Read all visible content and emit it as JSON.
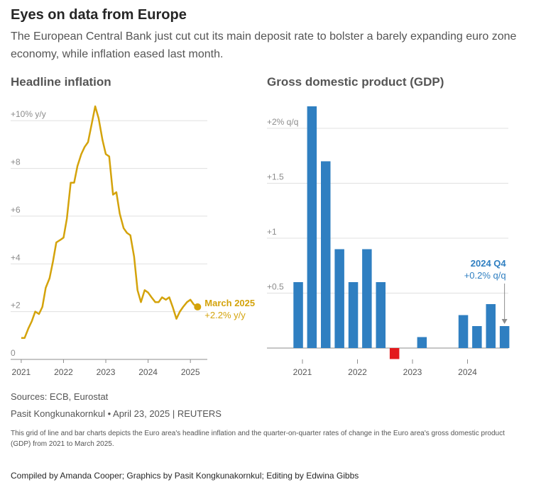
{
  "header": {
    "title": "Eyes on data from Europe",
    "subtitle": "The European Central Bank just cut cut its main deposit rate to bolster a barely expanding euro zone economy, while inflation eased last month."
  },
  "colors": {
    "inflation": "#d4a30b",
    "gdp_positive": "#2f7fc1",
    "gdp_negative": "#e31a1c",
    "grid": "#e0e0e0",
    "axis": "#8c8c8c"
  },
  "chart_data": [
    {
      "type": "line",
      "title": "Headline inflation",
      "series": [
        {
          "x": [
            2021.0,
            2021.08,
            2021.17,
            2021.25,
            2021.33,
            2021.42,
            2021.5,
            2021.58,
            2021.67,
            2021.75,
            2021.83,
            2021.92,
            2022.0,
            2022.08,
            2022.17,
            2022.25,
            2022.33,
            2022.42,
            2022.5,
            2022.58,
            2022.67,
            2022.75,
            2022.83,
            2022.92,
            2023.0,
            2023.08,
            2023.17,
            2023.25,
            2023.33,
            2023.42,
            2023.5,
            2023.58,
            2023.67,
            2023.75,
            2023.83,
            2023.92,
            2024.0,
            2024.08,
            2024.17,
            2024.25,
            2024.33,
            2024.42,
            2024.5,
            2024.58,
            2024.67,
            2024.75,
            2024.83,
            2024.92,
            2025.0,
            2025.08,
            2025.17
          ],
          "values": [
            0.9,
            0.9,
            1.3,
            1.6,
            2.0,
            1.9,
            2.2,
            3.0,
            3.4,
            4.1,
            4.9,
            5.0,
            5.1,
            5.9,
            7.4,
            7.4,
            8.1,
            8.6,
            8.9,
            9.1,
            9.9,
            10.6,
            10.1,
            9.2,
            8.6,
            8.5,
            6.9,
            7.0,
            6.1,
            5.5,
            5.3,
            5.2,
            4.3,
            2.9,
            2.4,
            2.9,
            2.8,
            2.6,
            2.4,
            2.4,
            2.6,
            2.5,
            2.6,
            2.2,
            1.7,
            2.0,
            2.2,
            2.4,
            2.5,
            2.3,
            2.2
          ]
        }
      ],
      "y_ticks": [
        "+10% y/y",
        "+8",
        "+6",
        "+4",
        "+2",
        "0"
      ],
      "x_ticks": [
        "2021",
        "2022",
        "2023",
        "2024",
        "2025"
      ],
      "xlim": [
        2020.75,
        2025.4
      ],
      "ylim": [
        0,
        10.6
      ],
      "annotation": {
        "label": "March 2025",
        "value_label": "+2.2% y/y",
        "x": 2025.17,
        "y": 2.2
      },
      "grid": true
    },
    {
      "type": "bar",
      "title": "Gross domestic product (GDP)",
      "categories": [
        "2021 Q1",
        "2021 Q2",
        "2021 Q3",
        "2021 Q4",
        "2022 Q1",
        "2022 Q2",
        "2022 Q3",
        "2022 Q4",
        "2023 Q1",
        "2023 Q2",
        "2023 Q3",
        "2023 Q4",
        "2024 Q1",
        "2024 Q2",
        "2024 Q3",
        "2024 Q4"
      ],
      "values": [
        0.6,
        2.2,
        1.7,
        0.9,
        0.6,
        0.9,
        0.6,
        -0.1,
        0.0,
        0.1,
        0.0,
        0.0,
        0.3,
        0.2,
        0.4,
        0.2
      ],
      "y_ticks": [
        "+2% q/q",
        "+1.5",
        "+1",
        "+0.5"
      ],
      "x_ticks": [
        "2021",
        "2022",
        "2023",
        "2024"
      ],
      "ylim": [
        -0.1,
        2.2
      ],
      "annotation": {
        "label": "2024 Q4",
        "value_label": "+0.2% q/q"
      },
      "grid": true
    }
  ],
  "footer": {
    "sources": "Sources: ECB, Eurostat",
    "byline": "Pasit Kongkunakornkul • April 23, 2025 | REUTERS",
    "note": "This grid of line and bar charts depicts the Euro area's headline inflation and the quarter-on-quarter rates of change in the Euro area's gross domestic product (GDP) from 2021 to March 2025.",
    "compiled": "Compiled by Amanda Cooper; Graphics by Pasit Kongkunakornkul; Editing by Edwina Gibbs"
  }
}
